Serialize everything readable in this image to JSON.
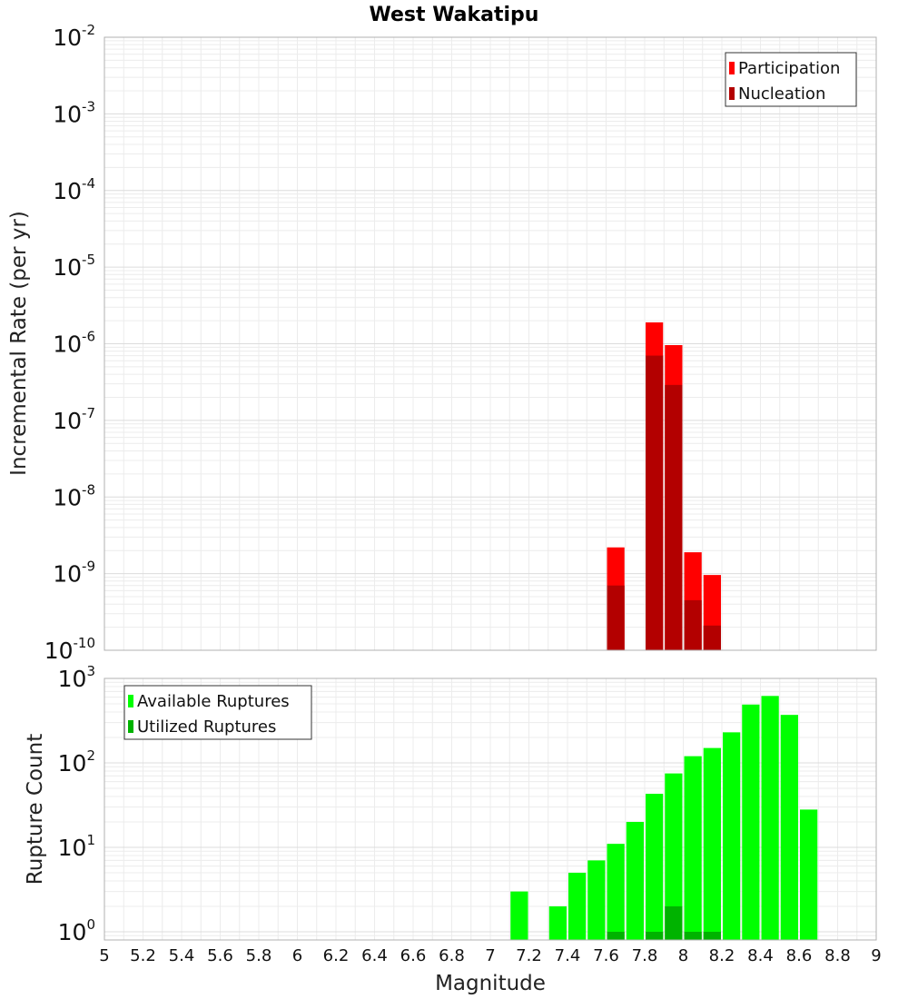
{
  "title": "West Wakatipu",
  "x_axis": {
    "label": "Magnitude",
    "ticks": [
      "5",
      "5.2",
      "5.4",
      "5.6",
      "5.8",
      "6",
      "6.2",
      "6.4",
      "6.6",
      "6.8",
      "7",
      "7.2",
      "7.4",
      "7.6",
      "7.8",
      "8",
      "8.2",
      "8.4",
      "8.6",
      "8.8",
      "9"
    ]
  },
  "chart_data": [
    {
      "type": "bar",
      "title": "West Wakatipu",
      "xlabel": "Magnitude",
      "ylabel": "Incremental Rate (per yr)",
      "yscale": "log",
      "xlim": [
        5,
        9
      ],
      "ylim": [
        1e-10,
        0.01
      ],
      "ytick_labels": [
        {
          "base": "10",
          "exp": "-2"
        },
        {
          "base": "10",
          "exp": "-3"
        },
        {
          "base": "10",
          "exp": "-4"
        },
        {
          "base": "10",
          "exp": "-5"
        },
        {
          "base": "10",
          "exp": "-6"
        },
        {
          "base": "10",
          "exp": "-7"
        },
        {
          "base": "10",
          "exp": "-8"
        },
        {
          "base": "10",
          "exp": "-9"
        },
        {
          "base": "10",
          "exp": "-10"
        }
      ],
      "grid": true,
      "legend_position": "top-right",
      "series": [
        {
          "name": "Participation",
          "color": "#ff0000",
          "x": [
            7.65,
            7.85,
            7.95,
            8.05,
            8.15
          ],
          "values": [
            2.2e-09,
            1.9e-06,
            9.6e-07,
            1.9e-09,
            9.6e-10
          ]
        },
        {
          "name": "Nucleation",
          "color": "#b30000",
          "x": [
            7.65,
            7.85,
            7.95,
            8.05,
            8.15
          ],
          "values": [
            7e-10,
            7e-07,
            2.9e-07,
            4.5e-10,
            2.1e-10
          ]
        }
      ]
    },
    {
      "type": "bar",
      "ylabel": "Rupture Count",
      "xlabel": "Magnitude",
      "yscale": "log",
      "xlim": [
        5,
        9
      ],
      "ylim": [
        0.8,
        1000
      ],
      "ytick_labels": [
        {
          "base": "10",
          "exp": "3"
        },
        {
          "base": "10",
          "exp": "2"
        },
        {
          "base": "10",
          "exp": "1"
        },
        {
          "base": "10",
          "exp": "0"
        }
      ],
      "grid": true,
      "legend_position": "top-left",
      "series": [
        {
          "name": "Available Ruptures",
          "color": "#00ff00",
          "x": [
            7.15,
            7.35,
            7.45,
            7.55,
            7.65,
            7.75,
            7.85,
            7.95,
            8.05,
            8.15,
            8.25,
            8.35,
            8.45,
            8.55,
            8.65
          ],
          "values": [
            3,
            2,
            5,
            7,
            11,
            20,
            43,
            75,
            120,
            150,
            230,
            490,
            620,
            370,
            28
          ]
        },
        {
          "name": "Utilized Ruptures",
          "color": "#00b300",
          "x": [
            7.65,
            7.85,
            7.95,
            8.05,
            8.15
          ],
          "values": [
            1,
            1,
            2,
            1,
            1
          ]
        }
      ]
    }
  ]
}
